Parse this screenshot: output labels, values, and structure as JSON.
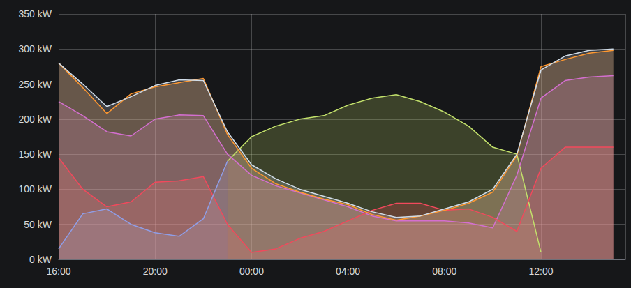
{
  "chart_data": {
    "type": "area",
    "x": [
      16,
      17,
      18,
      19,
      20,
      21,
      22,
      23,
      24,
      25,
      26,
      27,
      28,
      29,
      30,
      31,
      32,
      33,
      34,
      35,
      36,
      37,
      38,
      39
    ],
    "xlim": [
      16,
      39.5
    ],
    "xticks": [
      {
        "value": 16,
        "label": "16:00"
      },
      {
        "value": 20,
        "label": "20:00"
      },
      {
        "value": 24,
        "label": "00:00"
      },
      {
        "value": 28,
        "label": "04:00"
      },
      {
        "value": 32,
        "label": "08:00"
      },
      {
        "value": 36,
        "label": "12:00"
      }
    ],
    "ylim": [
      0,
      350
    ],
    "yticks": [
      {
        "value": 0,
        "label": "0 kW"
      },
      {
        "value": 50,
        "label": "50 kW"
      },
      {
        "value": 100,
        "label": "100 kW"
      },
      {
        "value": 150,
        "label": "150 kW"
      },
      {
        "value": 200,
        "label": "200 kW"
      },
      {
        "value": 250,
        "label": "250 kW"
      },
      {
        "value": 300,
        "label": "300 kW"
      },
      {
        "value": 350,
        "label": "350 kW"
      }
    ],
    "grid": true,
    "series": [
      {
        "color": "#c2e06b",
        "values": [
          null,
          null,
          null,
          null,
          null,
          null,
          null,
          140,
          175,
          190,
          200,
          205,
          220,
          230,
          235,
          225,
          210,
          190,
          160,
          150,
          10,
          null,
          null,
          null
        ]
      },
      {
        "color": "#d46fd0",
        "values": [
          225,
          205,
          182,
          176,
          200,
          206,
          205,
          150,
          120,
          105,
          95,
          85,
          75,
          62,
          55,
          55,
          55,
          52,
          45,
          120,
          230,
          255,
          260,
          262
        ]
      },
      {
        "color": "#f2495c",
        "values": [
          145,
          100,
          75,
          82,
          110,
          112,
          118,
          50,
          10,
          15,
          30,
          40,
          55,
          70,
          80,
          80,
          70,
          72,
          60,
          40,
          130,
          160,
          160,
          160
        ]
      },
      {
        "color": "#8f9ee8",
        "values": [
          15,
          65,
          72,
          50,
          38,
          33,
          58,
          140,
          null,
          null,
          null,
          null,
          null,
          null,
          null,
          null,
          null,
          null,
          null,
          null,
          null,
          null,
          null,
          null
        ]
      },
      {
        "color": "#ff9830",
        "values": [
          280,
          245,
          208,
          236,
          246,
          252,
          258,
          178,
          130,
          108,
          96,
          86,
          78,
          64,
          56,
          62,
          70,
          80,
          96,
          148,
          275,
          285,
          294,
          298
        ]
      },
      {
        "color": "#d0dce8",
        "values": [
          280,
          250,
          218,
          232,
          248,
          256,
          255,
          182,
          135,
          115,
          100,
          90,
          80,
          68,
          60,
          62,
          72,
          82,
          100,
          150,
          270,
          290,
          298,
          300
        ]
      }
    ]
  }
}
